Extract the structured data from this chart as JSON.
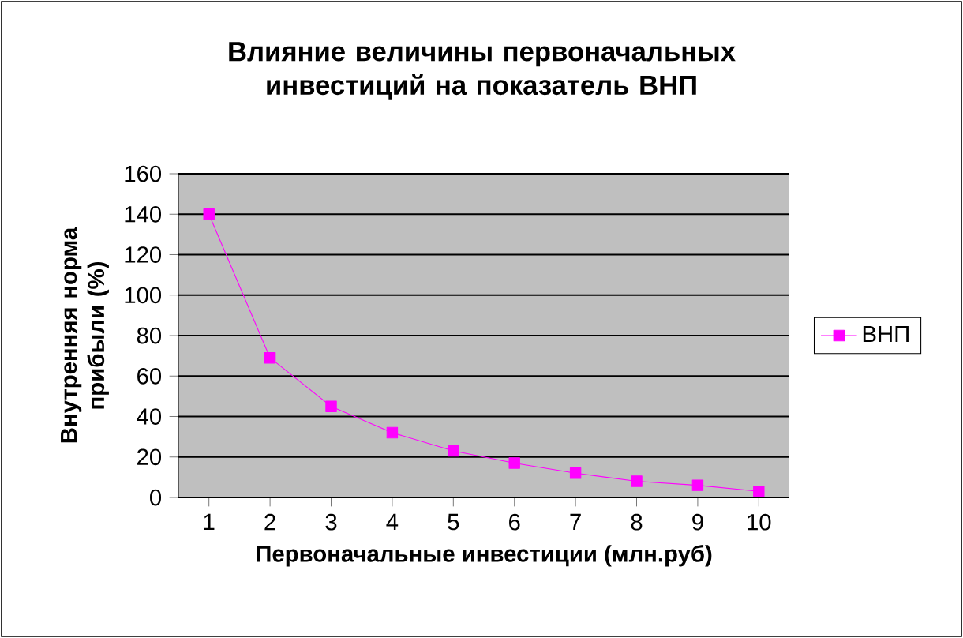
{
  "chart_data": {
    "type": "line",
    "title": "Влияние величины первоначальных инвестиций на показатель ВНП",
    "xlabel": "Первоначальные инвестиции (млн.руб)",
    "ylabel": "Внутренняя норма прибыли (%)",
    "categories": [
      "1",
      "2",
      "3",
      "4",
      "5",
      "6",
      "7",
      "8",
      "9",
      "10"
    ],
    "series": [
      {
        "name": "ВНП",
        "color": "#ff00ff",
        "values": [
          140,
          69,
          45,
          32,
          23,
          17,
          12,
          8,
          6,
          3
        ]
      }
    ],
    "ylim": [
      0,
      160
    ],
    "yticks": [
      0,
      20,
      40,
      60,
      80,
      100,
      120,
      140,
      160
    ],
    "grid": "y",
    "legend": "right",
    "marker": "square",
    "line_style": "solid"
  }
}
